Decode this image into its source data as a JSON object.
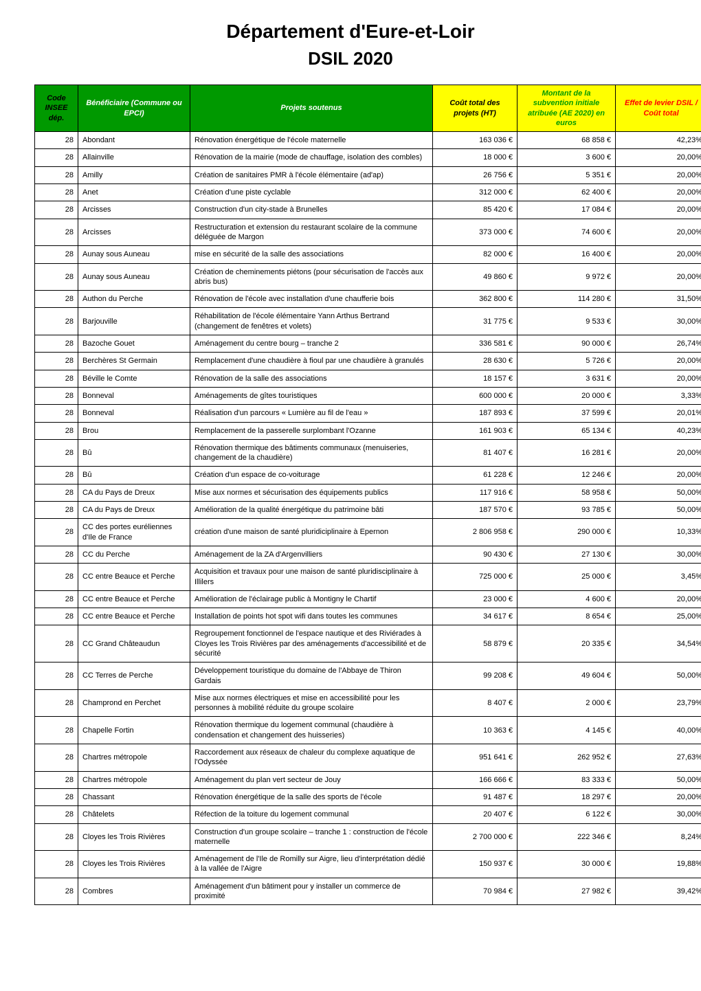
{
  "title": "Département d'Eure-et-Loir",
  "subtitle": "DSIL 2020",
  "header_colors": {
    "code": {
      "bg": "#009900",
      "fg": "#000000"
    },
    "benef": {
      "bg": "#009900",
      "fg": "#ffffff"
    },
    "proj": {
      "bg": "#009900",
      "fg": "#ffffff"
    },
    "cout": {
      "bg": "#ffff00",
      "fg": "#000000"
    },
    "subv": {
      "bg": "#ffff00",
      "fg": "#009900"
    },
    "effet": {
      "bg": "#ffff00",
      "fg": "#ff0000"
    }
  },
  "columns": {
    "code": "Code INSEE dép.",
    "benef": "Bénéficiaire (Commune ou EPCI)",
    "proj": "Projets soutenus",
    "cout": "Coût total des projets (HT)",
    "subv": "Montant de la subvention initiale atribuée (AE 2020) en euros",
    "effet": "Effet de levier DSIL / Coût total"
  },
  "rows": [
    {
      "code": "28",
      "benef": "Abondant",
      "proj": "Rénovation énergétique de l'école maternelle",
      "cout": "163 036 €",
      "subv": "68 858 €",
      "effet": "42,23%"
    },
    {
      "code": "28",
      "benef": "Allainville",
      "proj": "Rénovation de la mairie (mode de chauffage, isolation des combles)",
      "cout": "18 000 €",
      "subv": "3 600 €",
      "effet": "20,00%"
    },
    {
      "code": "28",
      "benef": "Amilly",
      "proj": "Création de sanitaires PMR à l'école élémentaire (ad'ap)",
      "cout": "26 756 €",
      "subv": "5 351 €",
      "effet": "20,00%"
    },
    {
      "code": "28",
      "benef": "Anet",
      "proj": "Création d'une piste cyclable",
      "cout": "312 000 €",
      "subv": "62 400 €",
      "effet": "20,00%"
    },
    {
      "code": "28",
      "benef": "Arcisses",
      "proj": "Construction d'un city-stade à Brunelles",
      "cout": "85 420 €",
      "subv": "17 084 €",
      "effet": "20,00%"
    },
    {
      "code": "28",
      "benef": "Arcisses",
      "proj": "Restructuration et extension du restaurant scolaire de la commune déléguée de Margon",
      "cout": "373 000 €",
      "subv": "74 600 €",
      "effet": "20,00%"
    },
    {
      "code": "28",
      "benef": "Aunay sous Auneau",
      "proj": "mise en sécurité de la salle des associations",
      "cout": "82 000 €",
      "subv": "16 400 €",
      "effet": "20,00%"
    },
    {
      "code": "28",
      "benef": "Aunay sous Auneau",
      "proj": "Création de cheminements piétons (pour sécurisation de l'accès aux abris bus)",
      "cout": "49 860 €",
      "subv": "9 972 €",
      "effet": "20,00%"
    },
    {
      "code": "28",
      "benef": "Authon du Perche",
      "proj": "Rénovation de l'école avec installation d'une chaufferie bois",
      "cout": "362 800 €",
      "subv": "114 280 €",
      "effet": "31,50%"
    },
    {
      "code": "28",
      "benef": "Barjouville",
      "proj": "Réhabilitation de l'école élémentaire Yann Arthus Bertrand (changement de fenêtres et volets)",
      "cout": "31 775 €",
      "subv": "9 533 €",
      "effet": "30,00%"
    },
    {
      "code": "28",
      "benef": "Bazoche Gouet",
      "proj": "Aménagement du centre bourg – tranche 2",
      "cout": "336 581 €",
      "subv": "90 000 €",
      "effet": "26,74%"
    },
    {
      "code": "28",
      "benef": "Berchères St Germain",
      "proj": "Remplacement d'une chaudière à fioul par une chaudière à granulés",
      "cout": "28 630 €",
      "subv": "5 726 €",
      "effet": "20,00%"
    },
    {
      "code": "28",
      "benef": "Béville le Comte",
      "proj": "Rénovation de la salle des associations",
      "cout": "18 157 €",
      "subv": "3 631 €",
      "effet": "20,00%"
    },
    {
      "code": "28",
      "benef": "Bonneval",
      "proj": "Aménagements de gîtes touristiques",
      "cout": "600 000 €",
      "subv": "20 000 €",
      "effet": "3,33%"
    },
    {
      "code": "28",
      "benef": "Bonneval",
      "proj": "Réalisation d'un parcours « Lumière au fil de l'eau »",
      "cout": "187 893 €",
      "subv": "37 599 €",
      "effet": "20,01%"
    },
    {
      "code": "28",
      "benef": "Brou",
      "proj": "Remplacement de la passerelle surplombant l'Ozanne",
      "cout": "161 903 €",
      "subv": "65 134 €",
      "effet": "40,23%"
    },
    {
      "code": "28",
      "benef": "Bû",
      "proj": "Rénovation thermique des bâtiments communaux (menuiseries, changement de la chaudière)",
      "cout": "81 407 €",
      "subv": "16 281 €",
      "effet": "20,00%"
    },
    {
      "code": "28",
      "benef": "Bû",
      "proj": "Création d'un espace de co-voiturage",
      "cout": "61 228 €",
      "subv": "12 246 €",
      "effet": "20,00%"
    },
    {
      "code": "28",
      "benef": "CA du Pays de Dreux",
      "proj": "Mise aux normes et sécurisation des équipements publics",
      "cout": "117 916 €",
      "subv": "58 958 €",
      "effet": "50,00%"
    },
    {
      "code": "28",
      "benef": "CA du Pays de Dreux",
      "proj": "Amélioration de la qualité énergétique du patrimoine bâti",
      "cout": "187 570 €",
      "subv": "93 785 €",
      "effet": "50,00%"
    },
    {
      "code": "28",
      "benef": "CC des portes euréliennes d'Ile de France",
      "proj": "création d'une maison de santé pluridiciplinaire à Epernon",
      "cout": "2 806 958 €",
      "subv": "290 000 €",
      "effet": "10,33%"
    },
    {
      "code": "28",
      "benef": "CC du Perche",
      "proj": "Aménagement de la ZA d'Argenvilliers",
      "cout": "90 430 €",
      "subv": "27 130 €",
      "effet": "30,00%"
    },
    {
      "code": "28",
      "benef": "CC entre Beauce et Perche",
      "proj": "Acquisition et travaux pour une maison de santé pluridisciplinaire à Illilers",
      "cout": "725 000 €",
      "subv": "25 000 €",
      "effet": "3,45%"
    },
    {
      "code": "28",
      "benef": "CC entre Beauce et Perche",
      "proj": "Amélioration de l'éclairage public à Montigny le Chartif",
      "cout": "23 000 €",
      "subv": "4 600 €",
      "effet": "20,00%"
    },
    {
      "code": "28",
      "benef": "CC entre Beauce et Perche",
      "proj": "Installation de points hot spot wifi dans toutes les communes",
      "cout": "34 617 €",
      "subv": "8 654 €",
      "effet": "25,00%"
    },
    {
      "code": "28",
      "benef": "CC Grand Châteaudun",
      "proj": "Regroupement fonctionnel de l'espace nautique et des Riviérades à Cloyes les Trois Rivières par des aménagements d'accessibilité et de sécurité",
      "cout": "58 879 €",
      "subv": "20 335 €",
      "effet": "34,54%"
    },
    {
      "code": "28",
      "benef": "CC Terres de Perche",
      "proj": "Développement touristique du domaine de l'Abbaye de Thiron Gardais",
      "cout": "99 208 €",
      "subv": "49 604 €",
      "effet": "50,00%"
    },
    {
      "code": "28",
      "benef": "Champrond en Perchet",
      "proj": "Mise aux normes électriques et mise en accessibilité pour les personnes à mobilité réduite du groupe scolaire",
      "cout": "8 407 €",
      "subv": "2 000 €",
      "effet": "23,79%"
    },
    {
      "code": "28",
      "benef": "Chapelle Fortin",
      "proj": "Rénovation thermique du logement communal (chaudière à condensation et changement des huisseries)",
      "cout": "10 363 €",
      "subv": "4 145 €",
      "effet": "40,00%"
    },
    {
      "code": "28",
      "benef": "Chartres métropole",
      "proj": "Raccordement aux réseaux de chaleur du complexe aquatique de l'Odyssée",
      "cout": "951 641 €",
      "subv": "262 952 €",
      "effet": "27,63%"
    },
    {
      "code": "28",
      "benef": "Chartres métropole",
      "proj": "Aménagement du plan vert secteur de Jouy",
      "cout": "166 666 €",
      "subv": "83 333 €",
      "effet": "50,00%"
    },
    {
      "code": "28",
      "benef": "Chassant",
      "proj": "Rénovation énergétique de la salle des sports de l'école",
      "cout": "91 487 €",
      "subv": "18 297 €",
      "effet": "20,00%"
    },
    {
      "code": "28",
      "benef": "Châtelets",
      "proj": "Réfection de la toiture du logement communal",
      "cout": "20 407 €",
      "subv": "6 122 €",
      "effet": "30,00%"
    },
    {
      "code": "28",
      "benef": "Cloyes les Trois Rivières",
      "proj": "Construction d'un groupe scolaire – tranche 1 : construction de l'école maternelle",
      "cout": "2 700 000 €",
      "subv": "222 346 €",
      "effet": "8,24%"
    },
    {
      "code": "28",
      "benef": "Cloyes les Trois Rivières",
      "proj": "Aménagement de l'Ile de Romilly sur Aigre, lieu d'interprétation dédié à la vallée de l'Aigre",
      "cout": "150 937 €",
      "subv": "30 000 €",
      "effet": "19,88%"
    },
    {
      "code": "28",
      "benef": "Combres",
      "proj": "Aménagement d'un bâtiment pour y installer un commerce de proximité",
      "cout": "70 984 €",
      "subv": "27 982 €",
      "effet": "39,42%"
    }
  ]
}
